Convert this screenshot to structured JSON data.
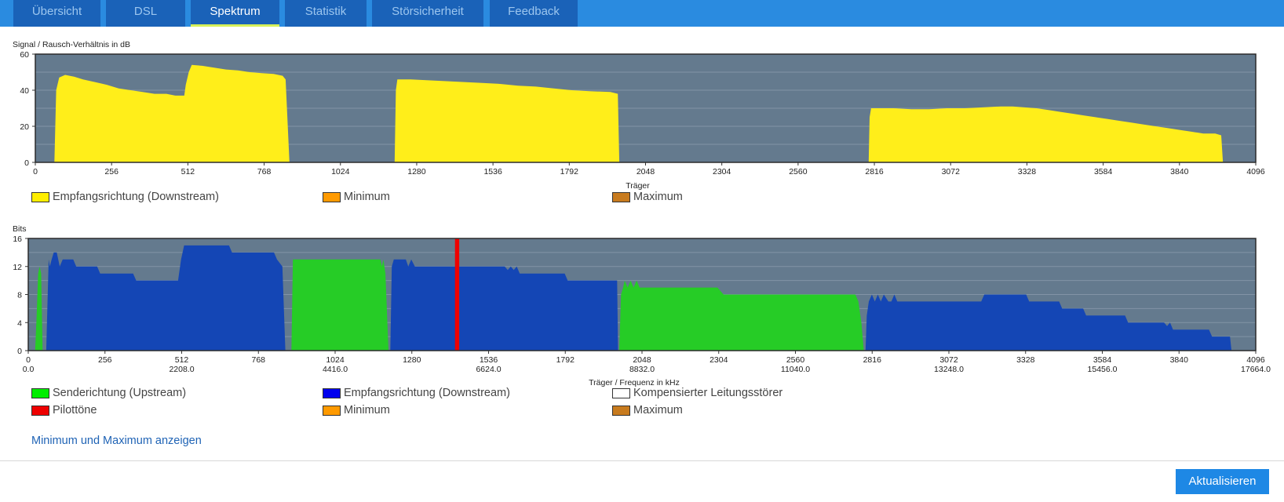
{
  "tabs": [
    {
      "label": "Übersicht",
      "active": false
    },
    {
      "label": "DSL",
      "active": false
    },
    {
      "label": "Spektrum",
      "active": true
    },
    {
      "label": "Statistik",
      "active": false
    },
    {
      "label": "Störsicherheit",
      "active": false
    },
    {
      "label": "Feedback",
      "active": false
    }
  ],
  "snr_chart": {
    "ylabel": "Signal / Rausch-Verhältnis in dB",
    "xlabel": "Träger",
    "legend": [
      {
        "label": "Empfangsrichtung (Downstream)",
        "color": "#ffee00"
      },
      {
        "label": "Minimum",
        "color": "#ff9a00"
      },
      {
        "label": "Maximum",
        "color": "#c87b1e"
      }
    ]
  },
  "bits_chart": {
    "ylabel": "Bits",
    "xlabel": "Träger / Frequenz in kHz",
    "legend": [
      {
        "label": "Senderichtung (Upstream)",
        "color": "#00ee00"
      },
      {
        "label": "Empfangsrichtung (Downstream)",
        "color": "#0000ee"
      },
      {
        "label": "Kompensierter Leitungsstörer",
        "color": "#ffffff"
      },
      {
        "label": "Pilottöne",
        "color": "#ee0000"
      },
      {
        "label": "Minimum",
        "color": "#ff9a00"
      },
      {
        "label": "Maximum",
        "color": "#c87b1e"
      }
    ]
  },
  "show_minmax_link": "Minimum und Maximum anzeigen",
  "refresh_button": "Aktualisieren",
  "chart_data": [
    {
      "type": "area",
      "ylabel": "Signal / Rausch-Verhältnis in dB",
      "xlabel": "Träger",
      "xlim": [
        0,
        4096
      ],
      "ylim": [
        0,
        60
      ],
      "x_ticks": [
        0,
        256,
        512,
        768,
        1024,
        1280,
        1536,
        1792,
        2048,
        2304,
        2560,
        2816,
        3072,
        3328,
        3584,
        3840,
        4096
      ],
      "y_ticks": [
        0,
        20,
        40,
        60
      ],
      "background": "#647a8e",
      "grid": true,
      "legend_position": "bottom",
      "series": [
        {
          "name": "Empfangsrichtung (Downstream)",
          "color": "#ffee1a",
          "segments": [
            [
              [
                64,
                0
              ],
              [
                70,
                40
              ],
              [
                80,
                47
              ],
              [
                100,
                48.5
              ],
              [
                130,
                47.5
              ],
              [
                160,
                46
              ],
              [
                200,
                44.5
              ],
              [
                240,
                43
              ],
              [
                280,
                41
              ],
              [
                320,
                40
              ],
              [
                360,
                39
              ],
              [
                400,
                38
              ],
              [
                440,
                38
              ],
              [
                470,
                37
              ],
              [
                500,
                37
              ],
              [
                505,
                43
              ],
              [
                515,
                50
              ],
              [
                525,
                54
              ],
              [
                560,
                53.5
              ],
              [
                600,
                52.5
              ],
              [
                640,
                51.5
              ],
              [
                680,
                51
              ],
              [
                720,
                50
              ],
              [
                760,
                49.5
              ],
              [
                800,
                49
              ],
              [
                830,
                48
              ],
              [
                840,
                46
              ],
              [
                853,
                0
              ]
            ],
            [
              [
                1206,
                0
              ],
              [
                1210,
                40
              ],
              [
                1215,
                46
              ],
              [
                1260,
                46
              ],
              [
                1320,
                45.5
              ],
              [
                1380,
                45
              ],
              [
                1440,
                44.5
              ],
              [
                1500,
                44
              ],
              [
                1560,
                43.5
              ],
              [
                1620,
                42.5
              ],
              [
                1680,
                42
              ],
              [
                1740,
                41
              ],
              [
                1800,
                40
              ],
              [
                1860,
                39.5
              ],
              [
                1930,
                39
              ],
              [
                1955,
                38
              ],
              [
                1960,
                0
              ]
            ],
            [
              [
                2797,
                0
              ],
              [
                2800,
                25
              ],
              [
                2805,
                30
              ],
              [
                2880,
                30
              ],
              [
                2940,
                29.5
              ],
              [
                3000,
                29.5
              ],
              [
                3060,
                30
              ],
              [
                3120,
                30
              ],
              [
                3180,
                30.5
              ],
              [
                3240,
                31
              ],
              [
                3280,
                31
              ],
              [
                3320,
                30.5
              ],
              [
                3360,
                30
              ],
              [
                3400,
                29
              ],
              [
                3440,
                28
              ],
              [
                3480,
                27
              ],
              [
                3520,
                26
              ],
              [
                3560,
                25
              ],
              [
                3600,
                24
              ],
              [
                3640,
                23
              ],
              [
                3680,
                22
              ],
              [
                3720,
                21
              ],
              [
                3760,
                20
              ],
              [
                3800,
                19
              ],
              [
                3840,
                18
              ],
              [
                3880,
                17
              ],
              [
                3920,
                16
              ],
              [
                3960,
                16
              ],
              [
                3980,
                15
              ],
              [
                3986,
                0
              ]
            ]
          ]
        }
      ]
    },
    {
      "type": "area",
      "ylabel": "Bits",
      "xlabel": "Träger / Frequenz in kHz",
      "xlim": [
        0,
        4096
      ],
      "ylim": [
        0,
        16
      ],
      "x_ticks": [
        0,
        256,
        512,
        768,
        1024,
        1280,
        1536,
        1792,
        2048,
        2304,
        2560,
        2816,
        3072,
        3328,
        3584,
        3840,
        4096
      ],
      "x_freq_labels": [
        "0.0",
        "2208.0",
        "4416.0",
        "6624.0",
        "8832.0",
        "11040.0",
        "13248.0",
        "15456.0",
        "17664.0"
      ],
      "y_ticks": [
        0,
        4,
        8,
        12,
        16
      ],
      "background": "#647a8e",
      "grid": true,
      "legend_position": "bottom",
      "series": [
        {
          "name": "Senderichtung (Upstream)",
          "color": "#26cc26",
          "segments": [
            [
              [
                23,
                0
              ],
              [
                28,
                5
              ],
              [
                33,
                11
              ],
              [
                38,
                12
              ],
              [
                43,
                11
              ],
              [
                48,
                0
              ]
            ],
            [
              [
                878,
                0
              ],
              [
                883,
                13
              ],
              [
                1175,
                13
              ],
              [
                1180,
                12
              ],
              [
                1185,
                13
              ],
              [
                1192,
                11
              ],
              [
                1202,
                0
              ]
            ],
            [
              [
                1972,
                0
              ],
              [
                1978,
                8
              ],
              [
                1985,
                9
              ],
              [
                1990,
                10
              ],
              [
                2000,
                9
              ],
              [
                2010,
                10
              ],
              [
                2020,
                9
              ],
              [
                2030,
                10
              ],
              [
                2040,
                9
              ],
              [
                2300,
                9
              ],
              [
                2310,
                8.5
              ],
              [
                2320,
                8
              ],
              [
                2370,
                8
              ],
              [
                2510,
                8
              ],
              [
                2560,
                8
              ],
              [
                2760,
                8
              ],
              [
                2770,
                7
              ],
              [
                2780,
                4
              ],
              [
                2788,
                0
              ]
            ]
          ]
        },
        {
          "name": "Empfangsrichtung (Downstream)",
          "color": "#1446b5",
          "segments": [
            [
              [
                60,
                0
              ],
              [
                68,
                13
              ],
              [
                72,
                12
              ],
              [
                78,
                13
              ],
              [
                85,
                14
              ],
              [
                95,
                14
              ],
              [
                100,
                13
              ],
              [
                105,
                12
              ],
              [
                115,
                13
              ],
              [
                150,
                13
              ],
              [
                160,
                12
              ],
              [
                230,
                12
              ],
              [
                240,
                11
              ],
              [
                350,
                11
              ],
              [
                360,
                10
              ],
              [
                500,
                10
              ],
              [
                510,
                13
              ],
              [
                520,
                15
              ],
              [
                670,
                15
              ],
              [
                680,
                14
              ],
              [
                820,
                14
              ],
              [
                830,
                13
              ],
              [
                848,
                12
              ],
              [
                858,
                0
              ]
            ],
            [
              [
                1208,
                0
              ],
              [
                1213,
                12
              ],
              [
                1220,
                13
              ],
              [
                1260,
                13
              ],
              [
                1268,
                12
              ],
              [
                1278,
                13
              ],
              [
                1290,
                12
              ],
              [
                1590,
                12
              ],
              [
                1600,
                11.5
              ],
              [
                1610,
                12
              ],
              [
                1620,
                11.5
              ],
              [
                1630,
                12
              ],
              [
                1640,
                11
              ],
              [
                1790,
                11
              ],
              [
                1800,
                10
              ],
              [
                1965,
                10
              ],
              [
                1968,
                0
              ]
            ],
            [
              [
                2794,
                0
              ],
              [
                2798,
                5
              ],
              [
                2805,
                7
              ],
              [
                2815,
                8
              ],
              [
                2825,
                7
              ],
              [
                2835,
                8
              ],
              [
                2845,
                7
              ],
              [
                2855,
                8
              ],
              [
                2870,
                7
              ],
              [
                2880,
                7
              ],
              [
                2890,
                8
              ],
              [
                2900,
                7
              ],
              [
                3180,
                7
              ],
              [
                3190,
                8
              ],
              [
                3330,
                8
              ],
              [
                3340,
                7
              ],
              [
                3440,
                7
              ],
              [
                3450,
                6
              ],
              [
                3520,
                6
              ],
              [
                3530,
                5
              ],
              [
                3660,
                5
              ],
              [
                3670,
                4
              ],
              [
                3790,
                4
              ],
              [
                3800,
                3.5
              ],
              [
                3810,
                4
              ],
              [
                3820,
                3
              ],
              [
                3940,
                3
              ],
              [
                3950,
                2
              ],
              [
                4010,
                2
              ],
              [
                4015,
                0
              ]
            ]
          ]
        },
        {
          "name": "Pilottöne",
          "color": "#ee0000",
          "segments": [
            [
              [
                1424,
                0
              ],
              [
                1424,
                16
              ],
              [
                1438,
                16
              ],
              [
                1438,
                0
              ]
            ]
          ]
        }
      ]
    }
  ]
}
